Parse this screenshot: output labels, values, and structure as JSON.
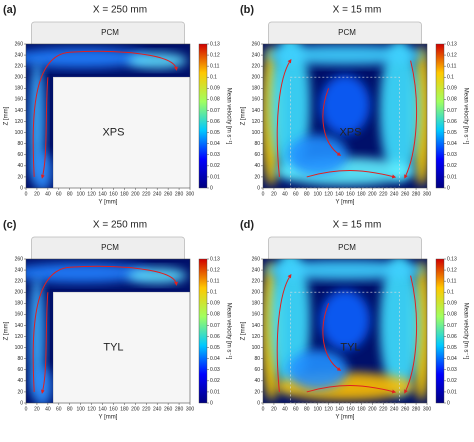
{
  "axes": {
    "y_label": "Y [mm]",
    "z_label": "Z [mm]",
    "colorbar_label": "Mean velocity [m s⁻¹]",
    "y_ticks": [
      0,
      20,
      40,
      60,
      80,
      100,
      120,
      140,
      160,
      180,
      200,
      220,
      240,
      260,
      280,
      300
    ],
    "z_ticks": [
      0,
      20,
      40,
      60,
      80,
      100,
      120,
      140,
      160,
      180,
      200,
      220,
      240,
      260
    ],
    "colorbar_ticks": [
      0,
      0.01,
      0.02,
      0.03,
      0.04,
      0.05,
      0.06,
      0.07,
      0.08,
      0.09,
      0.1,
      0.11,
      0.12,
      0.13
    ]
  },
  "panels": [
    {
      "label": "(a)",
      "title": "X = 250 mm",
      "pcm": "PCM",
      "insulation": "XPS"
    },
    {
      "label": "(b)",
      "title": "X = 15 mm",
      "pcm": "PCM",
      "insulation": "XPS"
    },
    {
      "label": "(c)",
      "title": "X = 250 mm",
      "pcm": "PCM",
      "insulation": "TYL"
    },
    {
      "label": "(d)",
      "title": "X = 15 mm",
      "pcm": "PCM",
      "insulation": "TYL"
    }
  ]
}
